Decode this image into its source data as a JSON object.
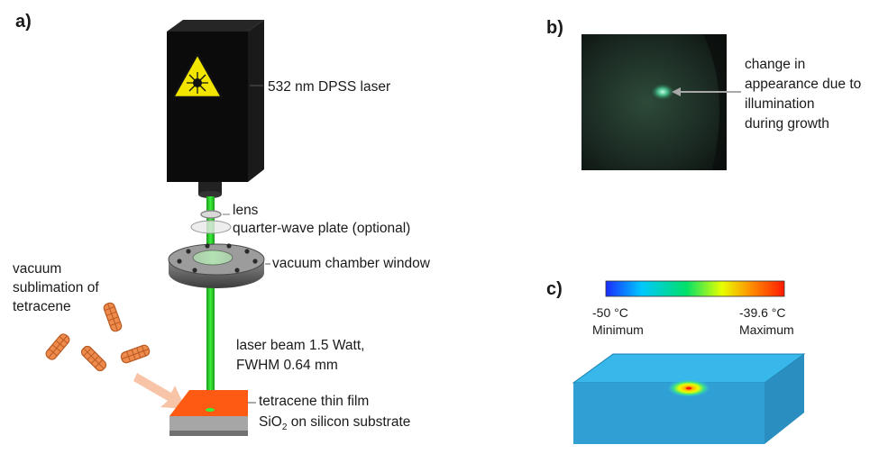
{
  "panels": {
    "a": "a)",
    "b": "b)",
    "c": "c)"
  },
  "setup": {
    "laser": "532 nm DPSS laser",
    "lens": "lens",
    "qwp": "quarter-wave plate (optional)",
    "window": "vacuum chamber window",
    "sublimation": [
      "vacuum",
      "sublimation of",
      "tetracene"
    ],
    "beam": [
      "laser beam 1.5 Watt,",
      "FWHM 0.64 mm"
    ],
    "film": "tetracene thin film",
    "substrate_prefix": "SiO",
    "substrate_sub": "2",
    "substrate_suffix": " on silicon substrate"
  },
  "photo_b": {
    "annotation": [
      "change in",
      "appearance due to",
      "illumination",
      "during growth"
    ]
  },
  "sim_c": {
    "colorbar": {
      "min_value": "-50 °C",
      "max_value": "-39.6 °C",
      "min_label": "Minimum",
      "max_label": "Maximum",
      "colors": [
        "#1a2cff",
        "#00c8ff",
        "#00e06a",
        "#e8ff00",
        "#ff8a00",
        "#ff1a00"
      ]
    }
  },
  "colors": {
    "beam": "#2ed82e",
    "film": "#ff5a14",
    "slab": "#38b8ea",
    "laser_body": "#0b0b0b"
  }
}
